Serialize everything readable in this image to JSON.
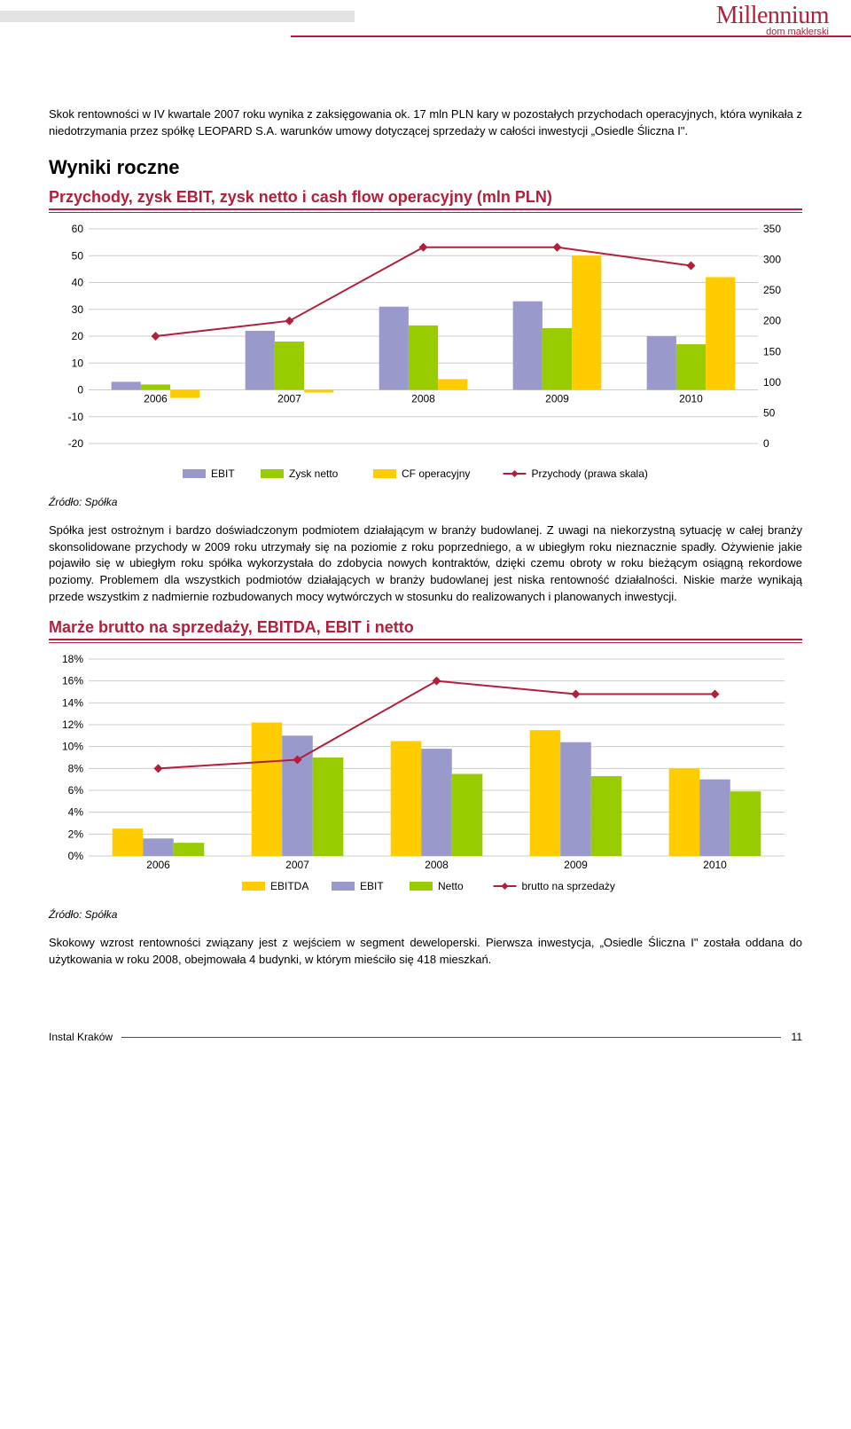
{
  "header": {
    "logo_main": "Millennium",
    "logo_sub": "dom maklerski"
  },
  "intro_para": "Skok rentowności w IV kwartale 2007 roku wynika z zaksięgowania ok. 17 mln PLN kary w pozostałych przychodach operacyjnych, która wynikała z niedotrzymania przez spółkę LEOPARD S.A. warunków umowy dotyczącej sprzedaży w całości inwestycji „Osiedle Śliczna I\".",
  "section_title": "Wyniki roczne",
  "chart1": {
    "title": "Przychody, zysk EBIT, zysk netto i cash flow operacyjny (mln PLN)",
    "type": "grouped-bar-with-line",
    "categories": [
      "2006",
      "2007",
      "2008",
      "2009",
      "2010"
    ],
    "left_axis": {
      "min": -20,
      "max": 60,
      "ticks": [
        -20,
        -10,
        0,
        10,
        20,
        30,
        40,
        50,
        60
      ],
      "fontsize": 12
    },
    "right_axis": {
      "min": 0,
      "max": 350,
      "ticks": [
        0,
        50,
        100,
        150,
        200,
        250,
        300,
        350
      ],
      "fontsize": 12
    },
    "series_bars": [
      {
        "name": "EBIT",
        "color": "#9999cc",
        "values": [
          3,
          22,
          31,
          33,
          20
        ]
      },
      {
        "name": "Zysk netto",
        "color": "#99cc00",
        "values": [
          2,
          18,
          24,
          23,
          17
        ]
      },
      {
        "name": "CF operacyjny",
        "color": "#ffcc00",
        "values": [
          -3,
          -1,
          4,
          50,
          42
        ]
      }
    ],
    "series_line": {
      "name": "Przychody (prawa skala)",
      "color": "#b31f3b",
      "marker": "diamond",
      "values": [
        175,
        200,
        320,
        320,
        290
      ]
    },
    "bar_width": 0.22,
    "grid_color": "#cccccc",
    "background": "#ffffff",
    "legend_items": [
      "EBIT",
      "Zysk netto",
      "CF operacyjny",
      "Przychody (prawa skala)"
    ]
  },
  "chart1_source": "Źródło: Spółka",
  "mid_para": "Spółka jest ostrożnym i bardzo doświadczonym podmiotem działającym w branży budowlanej. Z uwagi na niekorzystną sytuację w całej branży skonsolidowane przychody w 2009 roku utrzymały się na poziomie z roku poprzedniego, a w ubiegłym roku nieznacznie spadły. Ożywienie jakie pojawiło się w ubiegłym roku spółka wykorzystała do zdobycia nowych kontraktów, dzięki czemu obroty w roku bieżącym osiągną rekordowe poziomy. Problemem dla wszystkich podmiotów działających w branży budowlanej jest niska rentowność działalności. Niskie marże wynikają przede wszystkim z nadmiernie rozbudowanych mocy wytwórczych w stosunku do realizowanych i planowanych inwestycji.",
  "chart2": {
    "title": "Marże brutto na sprzedaży, EBITDA, EBIT i netto",
    "type": "grouped-bar-with-line",
    "categories": [
      "2006",
      "2007",
      "2008",
      "2009",
      "2010"
    ],
    "left_axis": {
      "min": 0,
      "max": 18,
      "ticks": [
        0,
        2,
        4,
        6,
        8,
        10,
        12,
        14,
        16,
        18
      ],
      "suffix": "%",
      "fontsize": 12
    },
    "series_bars": [
      {
        "name": "EBITDA",
        "color": "#ffcc00",
        "values": [
          2.5,
          12.2,
          10.5,
          11.5,
          8.0
        ]
      },
      {
        "name": "EBIT",
        "color": "#9999cc",
        "values": [
          1.6,
          11.0,
          9.8,
          10.4,
          7.0
        ]
      },
      {
        "name": "Netto",
        "color": "#99cc00",
        "values": [
          1.2,
          9.0,
          7.5,
          7.3,
          5.9
        ]
      }
    ],
    "series_line": {
      "name": "brutto na sprzedaży",
      "color": "#b31f3b",
      "marker": "diamond",
      "values": [
        8.0,
        8.8,
        16.0,
        14.8,
        14.8
      ]
    },
    "bar_width": 0.22,
    "grid_color": "#cccccc",
    "background": "#ffffff",
    "legend_items": [
      "EBITDA",
      "EBIT",
      "Netto",
      "brutto na sprzedaży"
    ]
  },
  "chart2_source": "Źródło: Spółka",
  "end_para": "Skokowy wzrost rentowności związany jest z wejściem w segment deweloperski. Pierwsza inwestycja, „Osiedle Śliczna I\" została oddana do użytkowania w roku 2008, obejmowała 4 budynki, w którym mieściło się 418 mieszkań.",
  "footer": {
    "left": "Instal Kraków",
    "page": "11"
  }
}
